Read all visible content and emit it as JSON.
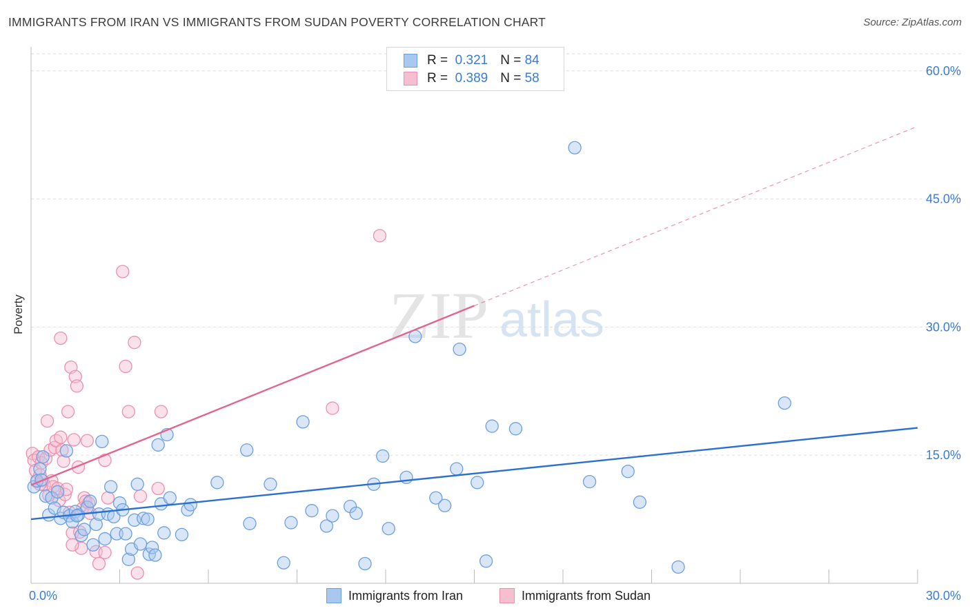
{
  "header": {
    "title": "IMMIGRANTS FROM IRAN VS IMMIGRANTS FROM SUDAN POVERTY CORRELATION CHART",
    "source": "Source: ZipAtlas.com"
  },
  "watermark": {
    "zip": "ZIP",
    "atlas": "atlas"
  },
  "legend": {
    "rows": [
      {
        "r_label": "R =",
        "r_value": "0.321",
        "n_label": "N =",
        "n_value": "84"
      },
      {
        "r_label": "R =",
        "r_value": "0.389",
        "n_label": "N =",
        "n_value": "58"
      }
    ]
  },
  "chart_data": {
    "type": "scatter",
    "title": "IMMIGRANTS FROM IRAN VS IMMIGRANTS FROM SUDAN POVERTY CORRELATION CHART",
    "ylabel": "Poverty",
    "xlabel": "",
    "xlim": [
      0,
      30
    ],
    "ylim": [
      0,
      62
    ],
    "x_tick_labels": [
      "0.0%",
      "30.0%"
    ],
    "y_ticks": [
      15,
      30,
      45,
      60
    ],
    "y_tick_labels": [
      "15.0%",
      "30.0%",
      "45.0%",
      "60.0%"
    ],
    "grid": true,
    "legend_position": "top-center",
    "colors": {
      "iran_fill": "#a8c8f0",
      "iran_stroke": "#6c9fe0",
      "iran_line": "#2b6fd0",
      "sudan_fill": "#f6bfd0",
      "sudan_stroke": "#ec8fae",
      "sudan_line": "#e2658f",
      "tick_label": "#3a7bd5",
      "grid": "#dddddd"
    },
    "series": [
      {
        "name": "Immigrants from Iran",
        "R": 0.321,
        "N": 84,
        "trend": {
          "x": [
            0,
            30
          ],
          "y": [
            7.5,
            18.2
          ],
          "style": "solid"
        },
        "points": [
          [
            0.1,
            11.3
          ],
          [
            0.2,
            12.0
          ],
          [
            0.3,
            13.4
          ],
          [
            0.4,
            14.8
          ],
          [
            0.5,
            10.2
          ],
          [
            0.6,
            8.0
          ],
          [
            0.7,
            10.0
          ],
          [
            0.8,
            8.8
          ],
          [
            0.9,
            10.7
          ],
          [
            1.0,
            7.6
          ],
          [
            1.1,
            8.3
          ],
          [
            1.2,
            15.5
          ],
          [
            1.3,
            7.9
          ],
          [
            1.4,
            7.2
          ],
          [
            1.5,
            8.4
          ],
          [
            1.6,
            8.0
          ],
          [
            1.7,
            5.6
          ],
          [
            1.8,
            6.3
          ],
          [
            1.9,
            8.9
          ],
          [
            2.0,
            9.6
          ],
          [
            2.1,
            4.5
          ],
          [
            2.2,
            6.9
          ],
          [
            2.3,
            8.1
          ],
          [
            2.4,
            16.6
          ],
          [
            2.5,
            5.2
          ],
          [
            2.6,
            8.1
          ],
          [
            2.7,
            11.3
          ],
          [
            2.8,
            7.8
          ],
          [
            2.9,
            5.8
          ],
          [
            3.0,
            9.4
          ],
          [
            3.1,
            8.6
          ],
          [
            3.2,
            5.8
          ],
          [
            3.3,
            2.8
          ],
          [
            3.4,
            4.0
          ],
          [
            3.5,
            7.4
          ],
          [
            3.6,
            11.6
          ],
          [
            3.7,
            4.6
          ],
          [
            3.8,
            7.6
          ],
          [
            4.0,
            3.4
          ],
          [
            4.1,
            4.2
          ],
          [
            4.2,
            3.3
          ],
          [
            4.3,
            16.2
          ],
          [
            4.4,
            9.3
          ],
          [
            4.5,
            5.9
          ],
          [
            4.6,
            17.4
          ],
          [
            4.7,
            10.0
          ],
          [
            5.1,
            5.7
          ],
          [
            5.3,
            8.6
          ],
          [
            5.4,
            9.2
          ],
          [
            6.3,
            11.8
          ],
          [
            7.3,
            15.6
          ],
          [
            7.4,
            7.0
          ],
          [
            8.1,
            11.6
          ],
          [
            8.8,
            7.1
          ],
          [
            9.2,
            18.9
          ],
          [
            9.5,
            8.5
          ],
          [
            10.0,
            6.7
          ],
          [
            10.2,
            7.9
          ],
          [
            10.8,
            9.0
          ],
          [
            11.0,
            8.2
          ],
          [
            11.3,
            2.3
          ],
          [
            11.6,
            11.6
          ],
          [
            11.9,
            14.9
          ],
          [
            12.1,
            6.4
          ],
          [
            12.7,
            12.4
          ],
          [
            13.0,
            28.9
          ],
          [
            13.7,
            10.0
          ],
          [
            14.0,
            9.1
          ],
          [
            14.4,
            13.4
          ],
          [
            14.5,
            27.4
          ],
          [
            15.1,
            11.8
          ],
          [
            15.4,
            2.6
          ],
          [
            15.6,
            18.4
          ],
          [
            16.4,
            18.1
          ],
          [
            18.4,
            51.0
          ],
          [
            18.9,
            11.9
          ],
          [
            20.2,
            13.1
          ],
          [
            20.6,
            9.5
          ],
          [
            21.9,
            1.9
          ],
          [
            25.5,
            21.1
          ],
          [
            0.35,
            12.1
          ],
          [
            1.55,
            7.9
          ],
          [
            3.95,
            7.5
          ],
          [
            8.55,
            2.4
          ]
        ]
      },
      {
        "name": "Immigrants from Sudan",
        "R": 0.389,
        "N": 58,
        "trend_solid": {
          "x": [
            0,
            15
          ],
          "y": [
            11.5,
            32.5
          ]
        },
        "trend_dashed": {
          "x": [
            15,
            30
          ],
          "y": [
            32.5,
            53.5
          ]
        },
        "points": [
          [
            0.05,
            15.2
          ],
          [
            0.1,
            14.4
          ],
          [
            0.15,
            13.2
          ],
          [
            0.2,
            11.9
          ],
          [
            0.25,
            14.8
          ],
          [
            0.3,
            12.7
          ],
          [
            0.35,
            14.1
          ],
          [
            0.4,
            12.0
          ],
          [
            0.45,
            11.5
          ],
          [
            0.5,
            14.6
          ],
          [
            0.55,
            19.0
          ],
          [
            0.6,
            10.3
          ],
          [
            0.65,
            15.6
          ],
          [
            0.7,
            12.0
          ],
          [
            0.75,
            11.3
          ],
          [
            0.8,
            15.9
          ],
          [
            0.85,
            16.7
          ],
          [
            0.9,
            11.1
          ],
          [
            0.95,
            9.7
          ],
          [
            1.0,
            17.1
          ],
          [
            1.05,
            15.6
          ],
          [
            1.1,
            14.3
          ],
          [
            1.15,
            10.4
          ],
          [
            1.2,
            11.0
          ],
          [
            1.25,
            20.1
          ],
          [
            1.3,
            8.3
          ],
          [
            1.35,
            25.3
          ],
          [
            1.4,
            5.9
          ],
          [
            1.45,
            16.8
          ],
          [
            1.5,
            24.2
          ],
          [
            1.55,
            23.1
          ],
          [
            1.6,
            13.6
          ],
          [
            1.65,
            6.0
          ],
          [
            1.7,
            4.1
          ],
          [
            1.75,
            8.8
          ],
          [
            1.8,
            10.0
          ],
          [
            1.85,
            9.6
          ],
          [
            1.9,
            16.7
          ],
          [
            1.95,
            9.4
          ],
          [
            2.0,
            8.2
          ],
          [
            2.2,
            3.7
          ],
          [
            2.3,
            2.3
          ],
          [
            2.5,
            14.4
          ],
          [
            2.6,
            10.0
          ],
          [
            3.1,
            36.5
          ],
          [
            3.2,
            25.4
          ],
          [
            3.3,
            20.1
          ],
          [
            3.5,
            28.2
          ],
          [
            3.6,
            1.2
          ],
          [
            3.7,
            10.2
          ],
          [
            4.3,
            11.1
          ],
          [
            4.4,
            20.1
          ],
          [
            10.2,
            20.5
          ],
          [
            11.8,
            40.7
          ],
          [
            1.0,
            28.7
          ],
          [
            0.3,
            11.6
          ],
          [
            1.4,
            4.5
          ],
          [
            2.5,
            3.6
          ]
        ]
      }
    ]
  },
  "bottom_legend": {
    "items": [
      {
        "label": "Immigrants from Iran"
      },
      {
        "label": "Immigrants from Sudan"
      }
    ]
  }
}
